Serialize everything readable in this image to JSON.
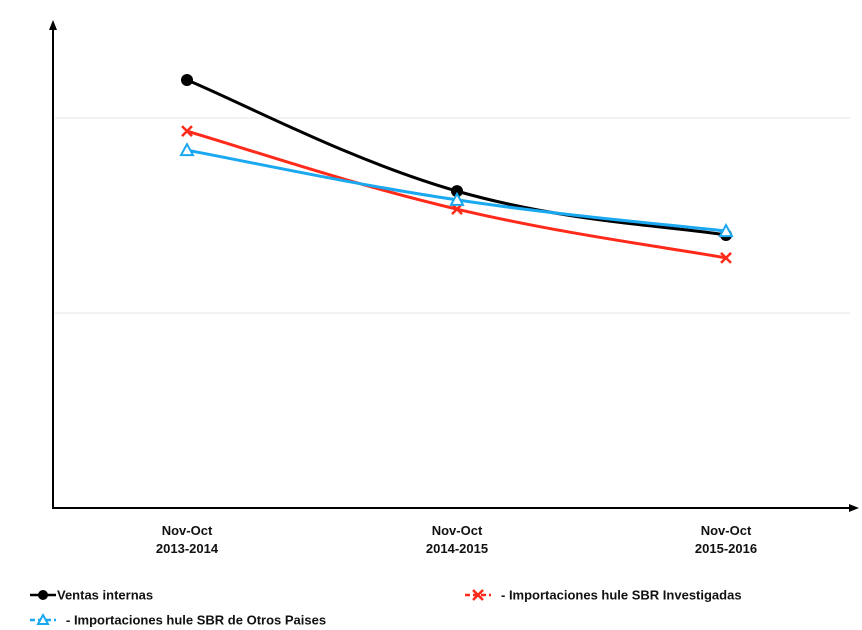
{
  "chart_data": {
    "type": "line",
    "categories": [
      "Nov-Oct 2013-2014",
      "Nov-Oct 2014-2015",
      "Nov-Oct 2015-2016"
    ],
    "series": [
      {
        "name": "Ventas internas",
        "color": "#000000",
        "marker": "circle",
        "values": [
          87.8,
          65.0,
          56.0
        ]
      },
      {
        "name": "- Importaciones hule SBR Investigadas",
        "color": "#ff2a1a",
        "marker": "x",
        "values": [
          77.3,
          61.3,
          51.3
        ]
      },
      {
        "name": "- Importaciones hule SBR de Otros Paises",
        "color": "#1aa8f0",
        "marker": "triangle",
        "values": [
          73.4,
          63.2,
          56.8
        ]
      }
    ],
    "ylim": [
      0,
      100
    ],
    "yticks": [
      40,
      80
    ],
    "grid": true
  }
}
